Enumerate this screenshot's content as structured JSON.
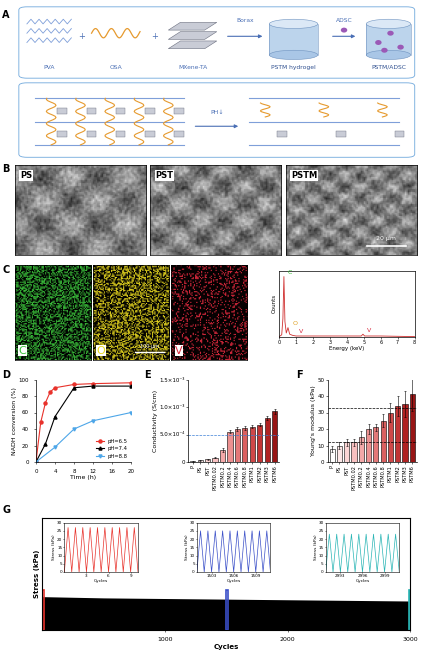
{
  "panel_labels": [
    "A",
    "B",
    "C",
    "D",
    "E",
    "F",
    "G"
  ],
  "schematic": {
    "components": [
      "PVA",
      "OSA",
      "MXene-TA"
    ],
    "plus": "+",
    "crosslinker": "Borax",
    "hydrogel": "PSTM hydrogel",
    "cell": "ADSC",
    "product": "PSTM/ADSC",
    "trigger": "PH↓"
  },
  "sem_images": {
    "labels": [
      "PS",
      "PST",
      "PSTM"
    ],
    "scale_bar": "20 μm"
  },
  "eds_maps": {
    "elements": [
      {
        "label": "C",
        "color": "#3cc43c"
      },
      {
        "label": "O",
        "color": "#e8d820"
      },
      {
        "label": "V",
        "color": "#d8283c"
      }
    ],
    "scale_bar": "100 μm"
  },
  "chart_data": [
    {
      "type": "line",
      "x_label": "Energy (keV)",
      "y_label": "Counts",
      "x": [
        0,
        0.15,
        0.22,
        0.28,
        0.34,
        0.42,
        0.52,
        0.62,
        0.8,
        1.0,
        2.0,
        4.0,
        4.85,
        4.95,
        5.05,
        6.0,
        8.0
      ],
      "values": [
        0,
        3,
        30,
        100,
        25,
        6,
        15,
        4,
        2,
        1,
        1,
        1,
        1,
        4,
        1,
        1,
        0
      ],
      "color": "#d03030",
      "xlim": [
        0,
        8
      ],
      "xticks": [
        0,
        1,
        2,
        3,
        4,
        5,
        6,
        7,
        8
      ],
      "ylim": [
        0,
        110
      ],
      "yticks": [],
      "tick_labels": "x",
      "annotations": [
        {
          "text": "C",
          "x": 0.28,
          "color": "#2db82d"
        },
        {
          "text": "O",
          "x": 0.52,
          "color": "#e0a020"
        },
        {
          "text": "V",
          "x": 0.9,
          "color": "#d8283c"
        },
        {
          "text": "V",
          "x": 4.95,
          "color": "#d8283c"
        }
      ]
    },
    {
      "type": "line",
      "x_label": "Time (h)",
      "y_label": "NADH conversion (%)",
      "xlim": [
        0,
        20
      ],
      "xticks": [
        0,
        4,
        8,
        12,
        16,
        20
      ],
      "ylim": [
        0,
        100
      ],
      "yticks": [
        0,
        20,
        40,
        60,
        80,
        100
      ],
      "legend": "lower right",
      "series": [
        {
          "name": "pH=6.5",
          "color": "#e8322b",
          "marker": "circle",
          "line_style": "solid",
          "x": [
            0,
            1,
            2,
            3,
            4,
            8,
            12,
            20
          ],
          "values": [
            0,
            48,
            72,
            85,
            90,
            94,
            95,
            96
          ]
        },
        {
          "name": "pH=7.4",
          "color": "#000000",
          "marker": "triangle",
          "line_style": "solid",
          "x": [
            0,
            2,
            4,
            8,
            12,
            20
          ],
          "values": [
            0,
            22,
            55,
            90,
            92,
            92
          ]
        },
        {
          "name": "pH=8.8",
          "color": "#4da6e8",
          "marker": "inverted_triangle",
          "line_style": "solid",
          "x": [
            0,
            4,
            8,
            12,
            20
          ],
          "values": [
            0,
            18,
            40,
            50,
            60
          ]
        }
      ]
    },
    {
      "type": "bar",
      "y_label": "Conductivity (S/cm)",
      "categories": [
        "P",
        "PS",
        "PST",
        "PSTM0.02",
        "PSTM0.2",
        "PSTM0.4",
        "PSTM0.6",
        "PSTM0.8",
        "PSTM1",
        "PSTM2",
        "PSTM3",
        "PSTM6"
      ],
      "values": [
        1e-05,
        3e-05,
        5e-05,
        8e-05,
        0.00022,
        0.00055,
        0.0006,
        0.00062,
        0.00064,
        0.00068,
        0.0008,
        0.00092
      ],
      "errors": [
        5e-06,
        1e-05,
        1e-05,
        1e-05,
        3e-05,
        3e-05,
        3e-05,
        3e-05,
        3e-05,
        3e-05,
        3e-05,
        5e-05
      ],
      "colors": [
        "#ffffff",
        "#fde8e8",
        "#fbd5d5",
        "#f8c0c0",
        "#f3a8a8",
        "#ec9090",
        "#e47878",
        "#da6060",
        "#cf4848",
        "#c23434",
        "#b02222",
        "#981515"
      ],
      "ylim": [
        0,
        0.0015
      ],
      "yticks": [
        0,
        {
          "value": 0.0005,
          "label": "5.0×10⁻⁴"
        },
        {
          "value": 0.001,
          "label": "1.0×10⁻³"
        },
        {
          "value": 0.0015,
          "label": "1.5×10⁻³"
        }
      ],
      "reference_lines": [
        0.0005
      ]
    },
    {
      "type": "bar",
      "y_label": "Young's modulus (kPa)",
      "categories": [
        "P",
        "PS",
        "PST",
        "PSTM0.02",
        "PSTM0.2",
        "PSTM0.4",
        "PSTM0.6",
        "PSTM0.8",
        "PSTM1",
        "PSTM2",
        "PSTM3",
        "PSTM6"
      ],
      "values": [
        8,
        10,
        12,
        12,
        15,
        20,
        21,
        25,
        30,
        34,
        35,
        41
      ],
      "errors": [
        2,
        2,
        2,
        2,
        4,
        3,
        2,
        4,
        6,
        6,
        8,
        10
      ],
      "colors": [
        "#ffffff",
        "#fde8e8",
        "#fbd5d5",
        "#f8c0c0",
        "#f3a8a8",
        "#ec9090",
        "#e47878",
        "#da6060",
        "#cf4848",
        "#c23434",
        "#b02222",
        "#981515"
      ],
      "ylim": [
        0,
        50
      ],
      "yticks": [
        0,
        10,
        20,
        30,
        40,
        50
      ],
      "reference_lines": [
        33,
        12
      ]
    },
    {
      "type": "area",
      "x_label": "Cycles",
      "y_label": "Stress (kPa)",
      "x": [
        0,
        500,
        1000,
        1500,
        2000,
        2500,
        3000
      ],
      "values": [
        27,
        26,
        25.5,
        25,
        24.5,
        24,
        23.5
      ],
      "color": "#000000",
      "xlim": [
        0,
        3000
      ],
      "xticks": [
        1000,
        2000,
        3000
      ],
      "ylim": [
        0,
        90
      ],
      "yticks": [],
      "tick_labels": "x",
      "insets": [
        {
          "color": "#e8322b",
          "x_label": "Cycles",
          "y_label": "Stress (kPa)",
          "xlim": [
            0,
            10
          ],
          "xticks": [
            3,
            6,
            9
          ],
          "ylim": [
            0,
            30
          ],
          "yticks": [
            0,
            5,
            10,
            15,
            20,
            25,
            30
          ],
          "x": [
            0,
            0.5,
            1,
            1.5,
            2,
            2.5,
            3,
            3.5,
            4,
            4.5,
            5,
            5.5,
            6,
            6.5,
            7,
            7.5,
            8,
            8.5,
            9,
            9.5,
            10
          ],
          "values": [
            0,
            27,
            0,
            27,
            0,
            27,
            0,
            27,
            0,
            27,
            0,
            27,
            0,
            27,
            0,
            27,
            0,
            27,
            0,
            27,
            0
          ]
        },
        {
          "color": "#3a4fc8",
          "x_label": "Cycles",
          "y_label": "Stress (kPa)",
          "xlim": [
            1501,
            1511
          ],
          "xticks": [
            1503,
            1506,
            1509
          ],
          "ylim": [
            0,
            30
          ],
          "yticks": [
            0,
            5,
            10,
            15,
            20,
            25,
            30
          ],
          "x": [
            1501,
            1501.5,
            1502,
            1502.5,
            1503,
            1503.5,
            1504,
            1504.5,
            1505,
            1505.5,
            1506,
            1506.5,
            1507,
            1507.5,
            1508,
            1508.5,
            1509,
            1509.5,
            1510,
            1510.5,
            1511
          ],
          "values": [
            0,
            25,
            0,
            25,
            0,
            25,
            0,
            25,
            0,
            25,
            0,
            25,
            0,
            25,
            0,
            25,
            0,
            25,
            0,
            25,
            0
          ]
        },
        {
          "color": "#2ab5b5",
          "x_label": "Cycles",
          "y_label": "Stress (kPa)",
          "xlim": [
            2991,
            3001
          ],
          "xticks": [
            2993,
            2996,
            2999
          ],
          "ylim": [
            0,
            30
          ],
          "yticks": [
            0,
            5,
            10,
            15,
            20,
            25,
            30
          ],
          "x": [
            2991,
            2991.5,
            2992,
            2992.5,
            2993,
            2993.5,
            2994,
            2994.5,
            2995,
            2995.5,
            2996,
            2996.5,
            2997,
            2997.5,
            2998,
            2998.5,
            2999,
            2999.5,
            3000,
            3000.5,
            3001
          ],
          "values": [
            0,
            23,
            0,
            23,
            0,
            23,
            0,
            23,
            0,
            23,
            0,
            23,
            0,
            23,
            0,
            23,
            0,
            23,
            0,
            23,
            0
          ]
        }
      ]
    }
  ]
}
